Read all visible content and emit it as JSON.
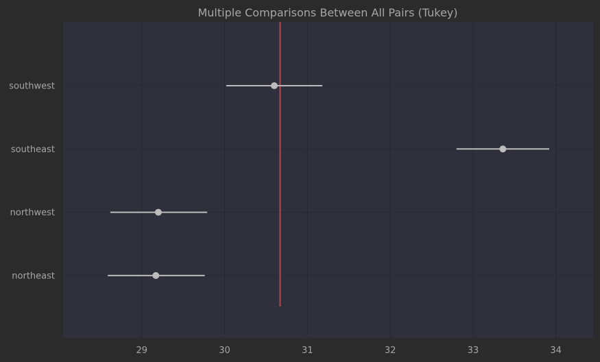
{
  "chart_data": {
    "type": "interval",
    "title": "Multiple Comparisons Between All Pairs (Tukey)",
    "xlabel": "",
    "ylabel": "",
    "xlim": [
      28.05,
      34.45
    ],
    "xticks": [
      29,
      30,
      31,
      32,
      33,
      34
    ],
    "grid": true,
    "categories": [
      "southwest",
      "southeast",
      "northwest",
      "northeast"
    ],
    "points": [
      {
        "group": "southwest",
        "mean": 30.6,
        "lower": 30.02,
        "upper": 31.18
      },
      {
        "group": "southeast",
        "mean": 33.36,
        "lower": 32.8,
        "upper": 33.92
      },
      {
        "group": "northwest",
        "mean": 29.2,
        "lower": 28.62,
        "upper": 29.79
      },
      {
        "group": "northeast",
        "mean": 29.17,
        "lower": 28.59,
        "upper": 29.76
      }
    ],
    "reference_line": {
      "x": 30.67,
      "color": "#b04a50"
    },
    "colors": {
      "figure_bg": "#2b2b2b",
      "plot_bg": "#30303c",
      "interval": "#bcbcbc",
      "grid": "#2a2a34",
      "text": "#a6a6a6"
    }
  }
}
